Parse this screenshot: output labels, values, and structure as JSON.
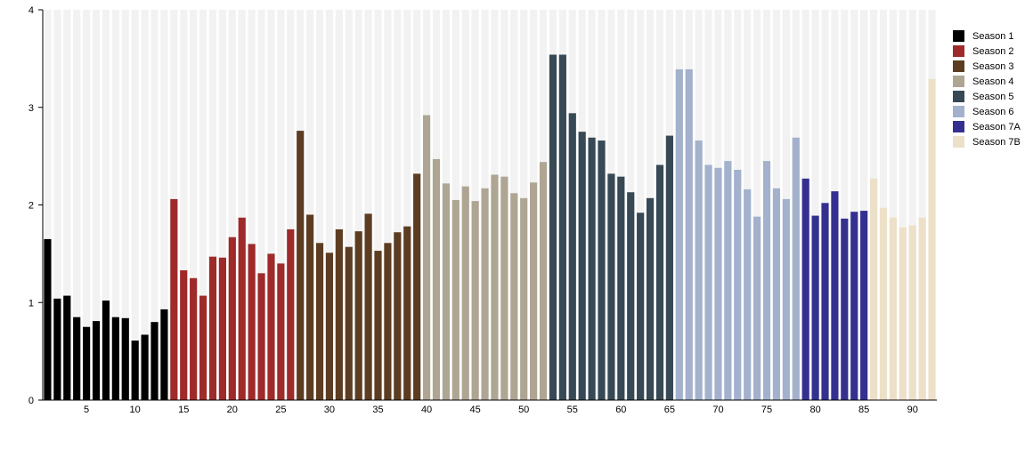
{
  "chart_data": {
    "type": "bar",
    "xlabel": "",
    "ylabel": "",
    "ylim": [
      0,
      4
    ],
    "yticks": [
      0,
      1,
      2,
      3,
      4
    ],
    "xticks": [
      5,
      10,
      15,
      20,
      25,
      30,
      35,
      40,
      45,
      50,
      55,
      60,
      65,
      70,
      75,
      80,
      85,
      90
    ],
    "grid": false,
    "legend_placement": "right",
    "series": [
      {
        "name": "Season 1",
        "color": "#000000",
        "x_start": 1,
        "values": [
          1.65,
          1.04,
          1.07,
          0.85,
          0.75,
          0.81,
          1.02,
          0.85,
          0.84,
          0.61,
          0.67,
          0.8,
          0.93
        ]
      },
      {
        "name": "Season 2",
        "color": "#9e2a2a",
        "x_start": 14,
        "values": [
          2.06,
          1.33,
          1.25,
          1.07,
          1.47,
          1.46,
          1.67,
          1.87,
          1.6,
          1.3,
          1.5,
          1.4,
          1.75
        ]
      },
      {
        "name": "Season 3",
        "color": "#5c3d22",
        "x_start": 27,
        "values": [
          2.76,
          1.9,
          1.61,
          1.51,
          1.75,
          1.57,
          1.73,
          1.91,
          1.53,
          1.61,
          1.72,
          1.78,
          2.32
        ]
      },
      {
        "name": "Season 4",
        "color": "#aea593",
        "x_start": 40,
        "values": [
          2.92,
          2.47,
          2.22,
          2.05,
          2.19,
          2.04,
          2.17,
          2.31,
          2.29,
          2.12,
          2.07,
          2.23,
          2.44
        ]
      },
      {
        "name": "Season 5",
        "color": "#374955",
        "x_start": 53,
        "values": [
          3.54,
          3.54,
          2.94,
          2.75,
          2.69,
          2.66,
          2.32,
          2.29,
          2.13,
          1.92,
          2.07,
          2.41,
          2.71
        ]
      },
      {
        "name": "Season 6",
        "color": "#a3b1cc",
        "x_start": 66,
        "values": [
          3.39,
          3.39,
          2.66,
          2.41,
          2.38,
          2.45,
          2.36,
          2.16,
          1.88,
          2.45,
          2.17,
          2.06,
          2.69
        ]
      },
      {
        "name": "Season 7A",
        "color": "#35308f",
        "x_start": 79,
        "values": [
          2.27,
          1.89,
          2.02,
          2.14,
          1.86,
          1.93,
          1.94
        ]
      },
      {
        "name": "Season 7B",
        "color": "#ede0c8",
        "x_start": 86,
        "values": [
          2.27,
          1.97,
          1.87,
          1.77,
          1.79,
          1.87,
          3.29
        ]
      }
    ]
  }
}
